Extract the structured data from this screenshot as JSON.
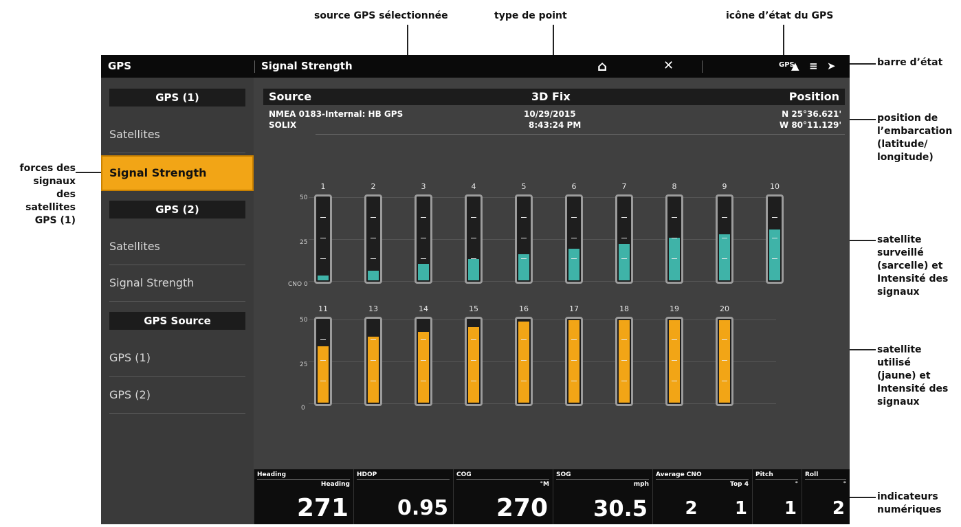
{
  "callouts": {
    "source": "source GPS sélectionnée",
    "fix_type": "type de point",
    "gps_icon": "icône d’état du GPS",
    "status_bar": "barre d’état",
    "position": [
      "position de",
      "l’embarcation",
      "(latitude/",
      "longitude)"
    ],
    "signal_strength": [
      "forces des",
      "signaux des",
      "satellites",
      "GPS (1)"
    ],
    "tracked": [
      "satellite",
      "surveillé",
      "(sarcelle) et",
      "Intensité des",
      "signaux"
    ],
    "used": [
      "satellite",
      "utilisé",
      "(jaune) et",
      "Intensité des",
      "signaux"
    ],
    "digital": [
      "indicateurs",
      "numériques"
    ]
  },
  "statusbar": {
    "app_title": "GPS",
    "page_title": "Signal Strength",
    "home_icon": "home-icon",
    "close_icon": "close-icon",
    "gps_label": "GPS"
  },
  "sidebar": {
    "gps1_header": "GPS (1)",
    "gps1_satellites": "Satellites",
    "gps1_signal": "Signal Strength",
    "gps2_header": "GPS (2)",
    "gps2_satellites": "Satellites",
    "gps2_signal": "Signal Strength",
    "source_header": "GPS Source",
    "source_gps1": "GPS (1)",
    "source_gps2": "GPS (2)"
  },
  "info": {
    "source_label": "Source",
    "fix_label": "3D Fix",
    "position_label": "Position",
    "source_line1": "NMEA 0183-Internal: HB GPS",
    "source_line2": "SOLIX",
    "date": "10/29/2015",
    "time": "8:43:24 PM",
    "lat": "N 25°36.621'",
    "lon": "W 80°11.129'"
  },
  "chart_data": {
    "type": "bar",
    "y_axis_labels": [
      "50",
      "25",
      "CNO 0"
    ],
    "y_axis_labels_bottom": [
      "50",
      "25",
      "0"
    ],
    "ylim": [
      0,
      50
    ],
    "colors": {
      "tracked": "#3fb3a8",
      "used": "#f2a516"
    },
    "tracked": {
      "satellites": [
        "1",
        "2",
        "3",
        "4",
        "5",
        "6",
        "7",
        "8",
        "9",
        "10"
      ],
      "values": [
        3,
        6,
        10,
        13,
        16,
        19,
        22,
        26,
        28,
        31
      ]
    },
    "used": {
      "satellites": [
        "11",
        "13",
        "14",
        "15",
        "16",
        "17",
        "18",
        "19",
        "20"
      ],
      "values": [
        34,
        40,
        43,
        46,
        49,
        50,
        50,
        50,
        50
      ]
    }
  },
  "digital": [
    {
      "label": "Heading",
      "sub": "Heading",
      "value": "271"
    },
    {
      "label": "HDOP",
      "sub": "",
      "value": "0.95"
    },
    {
      "label": "COG",
      "sub": "°M",
      "value": "270"
    },
    {
      "label": "SOG",
      "sub": "mph",
      "value": "30.5"
    },
    {
      "label": "Average CNO",
      "sub": "Top 4",
      "value": "2      1"
    },
    {
      "label": "Pitch",
      "sub": "°",
      "value": "1"
    },
    {
      "label": "Roll",
      "sub": "°",
      "value": "2"
    }
  ]
}
